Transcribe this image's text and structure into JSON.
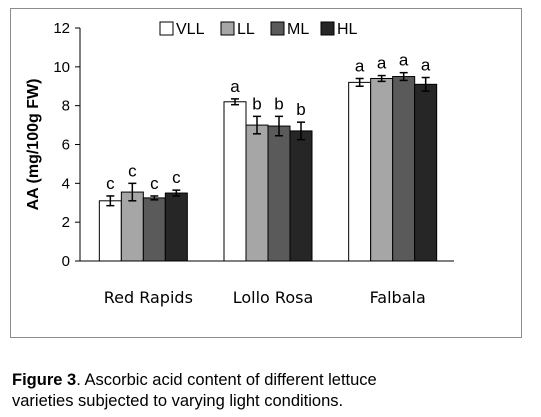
{
  "chart_data": {
    "type": "bar",
    "categories": [
      "Red Rapids",
      "Lollo Rosa",
      "Falbala"
    ],
    "ylabel": "AA  (mg/100g  FW)",
    "xlabel": "",
    "ylim": [
      0,
      12
    ],
    "yticks": [
      0,
      2,
      4,
      6,
      8,
      10,
      12
    ],
    "legend_position": "top",
    "series": [
      {
        "name": "VLL",
        "color": "#ffffff",
        "values": [
          3.1,
          8.2,
          9.2
        ],
        "errors": [
          0.25,
          0.15,
          0.2
        ],
        "labels": [
          "c",
          "a",
          "a"
        ]
      },
      {
        "name": "LL",
        "color": "#a6a6a6",
        "values": [
          3.55,
          7.0,
          9.4
        ],
        "errors": [
          0.45,
          0.45,
          0.15
        ],
        "labels": [
          "c",
          "b",
          "a"
        ]
      },
      {
        "name": "ML",
        "color": "#5a5a5a",
        "values": [
          3.25,
          6.95,
          9.5
        ],
        "errors": [
          0.1,
          0.5,
          0.2
        ],
        "labels": [
          "c",
          "b",
          "a"
        ]
      },
      {
        "name": "HL",
        "color": "#262626",
        "values": [
          3.5,
          6.7,
          9.1
        ],
        "errors": [
          0.15,
          0.45,
          0.35
        ],
        "labels": [
          "c",
          "b",
          "a"
        ]
      }
    ]
  },
  "caption": {
    "prefix": "Figure 3",
    "text_line1": ". Ascorbic acid content of different lettuce",
    "text_line2": "varieties subjected to varying light   conditions."
  }
}
